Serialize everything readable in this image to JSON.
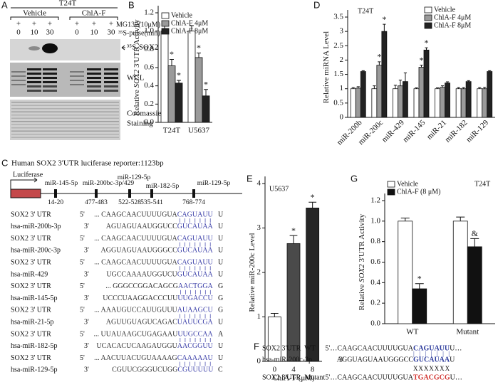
{
  "panels": [
    "A",
    "B",
    "C",
    "D",
    "E",
    "F",
    "G"
  ],
  "blot": {
    "cell": "T24T",
    "groups": [
      "Vehicle",
      "ChlA-F"
    ],
    "plus": [
      "+",
      "+",
      "+",
      "+",
      "+",
      "+"
    ],
    "mg132_label": "MG132(10μM)",
    "times": [
      "0",
      "10",
      "30",
      "0",
      "10",
      "30"
    ],
    "pulse_label": "³⁵S-pulse(min)",
    "bands": [
      [
        "³⁵S-SOX2"
      ],
      [
        "WCL"
      ],
      [
        "Coomassie",
        "Staining"
      ]
    ]
  },
  "chart_data": [
    {
      "type": "bar",
      "ylabel": [
        "Relative ",
        "SOX2",
        " 3'UTR Activity"
      ],
      "categories": [
        "T24T",
        "U5637"
      ],
      "series": [
        {
          "name": "Vehicle",
          "color": "#ffffff",
          "values": [
            1.0,
            1.0
          ],
          "errors": [
            0.06,
            0.06
          ]
        },
        {
          "name": "ChlA-F 4μM",
          "color": "#9a9a9a",
          "values": [
            0.62,
            0.71
          ],
          "errors": [
            0.07,
            0.05
          ],
          "significance": [
            "*",
            "*"
          ]
        },
        {
          "name": "ChlA-F 8μM",
          "color": "#222222",
          "values": [
            0.43,
            0.29
          ],
          "errors": [
            0.03,
            0.07
          ],
          "significance": [
            "*",
            "*"
          ]
        }
      ],
      "ylim": [
        0,
        1.2
      ],
      "yticks": [
        {
          "value": 0,
          "label": "0.0"
        },
        0.2,
        0.4,
        0.6,
        0.8,
        {
          "value": 1,
          "label": "1.0"
        },
        1.2
      ],
      "legend": "upper left"
    },
    {
      "type": "bar",
      "note": "T24T",
      "ylabel": [
        "Relative miRNA Level"
      ],
      "categories": [
        "miR-200b",
        "miR-200c",
        "miR-429",
        "miR-145",
        "miR-21",
        "miR-182",
        "miR-129"
      ],
      "series": [
        {
          "name": "Vehicle",
          "color": "#ffffff",
          "values": [
            1.0,
            1.0,
            1.0,
            1.0,
            1.0,
            1.0,
            1.0
          ],
          "errors": [
            0.04,
            0.1,
            0.12,
            0.03,
            0.03,
            0.04,
            0.04
          ]
        },
        {
          "name": "ChlA-F 4μM",
          "color": "#9a9a9a",
          "values": [
            1.02,
            1.82,
            1.1,
            1.75,
            1.05,
            1.0,
            1.0
          ],
          "errors": [
            0.05,
            0.12,
            0.2,
            0.07,
            0.05,
            0.04,
            0.05
          ],
          "significance": [
            null,
            "*",
            null,
            "*",
            null,
            null,
            null
          ]
        },
        {
          "name": "ChlA-F 8μM",
          "color": "#222222",
          "values": [
            1.6,
            3.0,
            1.25,
            2.35,
            1.2,
            1.25,
            1.6
          ],
          "errors": [
            0.03,
            0.25,
            0.3,
            0.08,
            0.04,
            0.03,
            0.03
          ],
          "significance": [
            null,
            "*",
            null,
            "*",
            null,
            null,
            null
          ]
        }
      ],
      "ylim": [
        0,
        3.5
      ],
      "yticks": [
        0,
        0.5,
        1,
        1.5,
        2,
        2.5,
        3,
        3.5
      ],
      "legend": "upper right"
    },
    {
      "type": "bar",
      "note": "U5637",
      "ylabel": [
        "Relative miR-200c Level"
      ],
      "xlabel": "ChlA-F (μM)",
      "categories": [
        "0",
        "4",
        "8"
      ],
      "values": [
        1.0,
        2.65,
        3.45
      ],
      "errors": [
        0.08,
        0.18,
        0.13
      ],
      "colors": [
        "#ffffff",
        "#4a4a4a",
        "#262626"
      ],
      "significance": [
        null,
        "*",
        "*"
      ],
      "ylim": [
        0,
        4
      ],
      "yticks": [
        0,
        1,
        2,
        3,
        4
      ]
    },
    {
      "type": "bar",
      "note": "T24T",
      "ylabel": [
        "Relative ",
        "SOX2",
        " 3'UTR Activity"
      ],
      "categories": [
        "WT",
        "Mutant"
      ],
      "series": [
        {
          "name": "Vehicle",
          "color": "#ffffff",
          "values": [
            1.0,
            1.0
          ],
          "errors": [
            0.03,
            0.04
          ]
        },
        {
          "name": "ChlA-F (8 μM)",
          "color": "#111111",
          "values": [
            0.34,
            0.75
          ],
          "errors": [
            0.05,
            0.08
          ],
          "significance": [
            "*",
            "&"
          ]
        }
      ],
      "ylim": [
        0,
        1.2
      ],
      "yticks": [
        {
          "value": 0,
          "label": "0.0"
        },
        0.2,
        0.4,
        0.6,
        0.8,
        {
          "value": 1,
          "label": "1.0"
        },
        1.2
      ],
      "legend": "upper left"
    }
  ],
  "reporter": {
    "title": "Human SOX2 3'UTR luciferase reporter:1123bp",
    "luciferase": "Luciferase",
    "sites": [
      {
        "name": "miR-145-5p",
        "range": "14-20"
      },
      {
        "name": "miR-200bc-3p/429",
        "range": "477-483"
      },
      {
        "name": "miR-129-5p",
        "range": "522-528"
      },
      {
        "name": "miR-182-5p",
        "range": "535-541"
      },
      {
        "name": "miR-129-5p",
        "range": "768-774"
      }
    ],
    "rows": [
      {
        "label": "SOX2 3' UTR",
        "prime": "5'",
        "seq": [
          "... CAAGCAACUUUUGUA",
          "CAGUAUU",
          "U"
        ]
      },
      {
        "label": "hsa-miR-200b-3p",
        "prime": "3'",
        "seq": [
          "AGUAGUAAUGGUCC",
          "GUCAUAA",
          "U"
        ]
      },
      {
        "label": "SOX2 3' UTR",
        "prime": "5'",
        "seq": [
          "... CAAGCAACUUUUGUA",
          "CAGUAUU",
          "U"
        ]
      },
      {
        "label": "hsa-miR-200c-3p",
        "prime": "3'",
        "seq": [
          "AGGUAGUAAUGGGCC",
          "GUCAUAA",
          "U"
        ]
      },
      {
        "label": "SOX2 3' UTR",
        "prime": "5'",
        "seq": [
          "... CAAGCAACUUUUGUA",
          "CAGUAUU",
          "U"
        ]
      },
      {
        "label": "hsa-miR-429",
        "prime": "3'",
        "seq": [
          "UGCCAAAAUGGUCU",
          "GUCAUAA",
          "U"
        ]
      },
      {
        "label": "SOX2 3' UTR",
        "prime": "5'",
        "seq": [
          "... GGGCCGGACAGCG",
          "AACTGGA",
          "G"
        ]
      },
      {
        "label": "hsa-miR-145-5p",
        "prime": "3'",
        "seq": [
          "UCCCUAAGGACCCUU",
          "UUGACCU",
          "G"
        ]
      },
      {
        "label": "SOX2 3' UTR",
        "prime": "5'",
        "seq": [
          "... AAAUGUCCAUUGUUU",
          "AUAAGCU",
          "G"
        ]
      },
      {
        "label": "hsa-miR-21-5p",
        "prime": "3'",
        "seq": [
          "AGUUGUAGUCAGAC",
          "UAUUCGA",
          "U"
        ]
      },
      {
        "label": "SOX2 3' UTR",
        "prime": "5'",
        "seq": [
          "... UUAUAAGCUGAGAAU",
          "UUGCCAA",
          "A"
        ]
      },
      {
        "label": "hsa-miR-182-5p",
        "prime": "3'",
        "seq": [
          "UCACACUCAAGAUGGU",
          "AACGGUU",
          "U"
        ]
      },
      {
        "label": "SOX2 3' UTR",
        "prime": "5'",
        "seq": [
          "... AACUUACUGUAAAAG",
          "CAAAAAU",
          "U"
        ]
      },
      {
        "label": "hsa-miR-129-5p",
        "prime": "3'",
        "seq": [
          "CGUUCGGGUCUGG",
          "CGUUUUU",
          "C"
        ]
      }
    ]
  },
  "mutant": {
    "rows": [
      {
        "label": "SOX2 3'UTR  WT",
        "seq": [
          "5'…CAAGCAACUUUUGUA",
          "CAGUAUU",
          "U…"
        ]
      },
      {
        "label": "hsa-miR-200c-3p",
        "prime": "3'",
        "seq": [
          "AGGUAGUAAUGGGCC",
          "GUCAUAA",
          "U"
        ]
      },
      {
        "label": "SOX2 3'UTR  Mutant",
        "seq": [
          "5'…CAAGCAACUUUUGUA",
          "TGACGCG",
          "U…"
        ]
      }
    ],
    "pairing": "|||||||",
    "mismatch": "XXXXXXX"
  }
}
